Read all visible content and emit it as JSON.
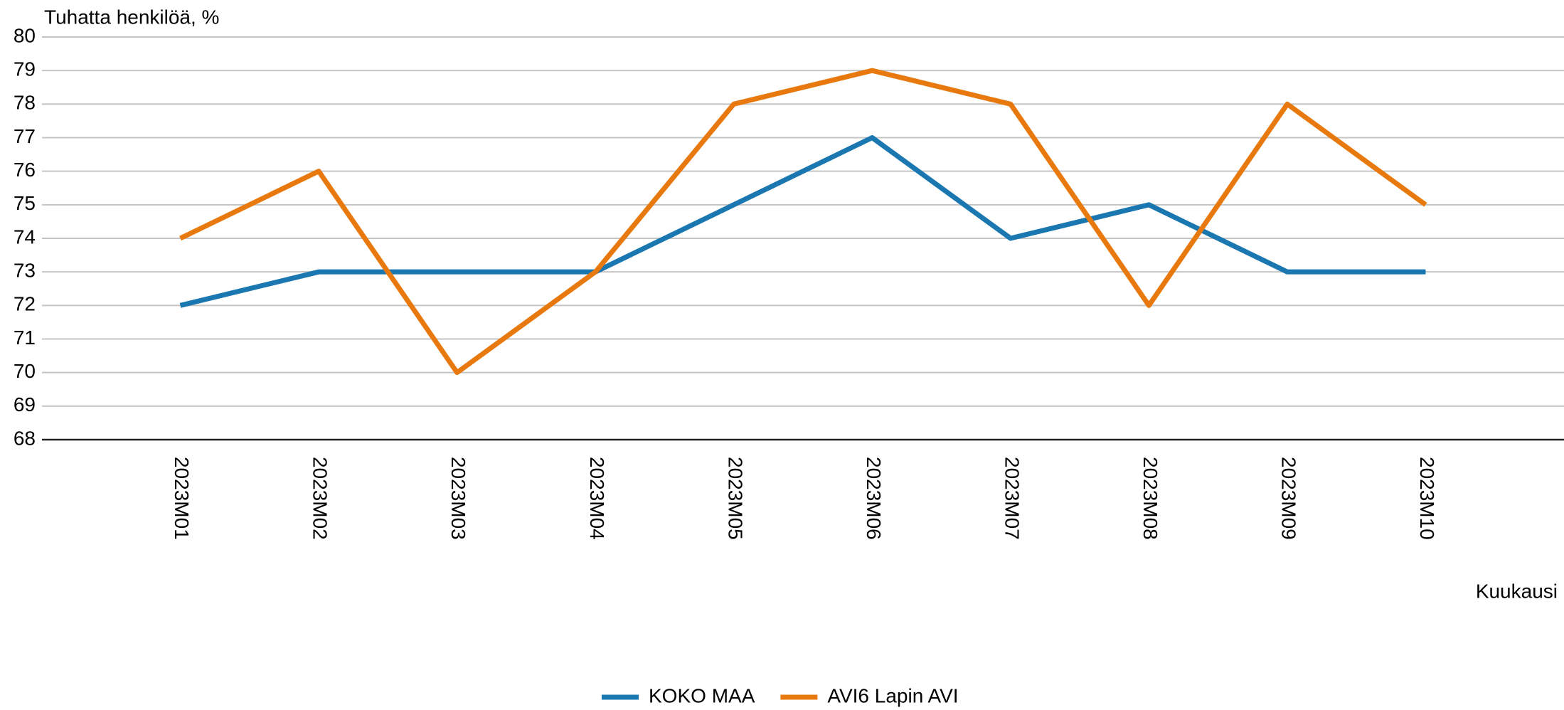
{
  "chart_data": {
    "type": "line",
    "title": "Tuhatta henkilöä, %",
    "x_label": "Kuukausi",
    "categories": [
      "2023M01",
      "2023M02",
      "2023M03",
      "2023M04",
      "2023M05",
      "2023M06",
      "2023M07",
      "2023M08",
      "2023M09",
      "2023M10"
    ],
    "series": [
      {
        "name": "KOKO MAA",
        "color": "#1a77b0",
        "values": [
          72,
          73,
          73,
          73,
          75,
          77,
          74,
          75,
          73,
          73
        ]
      },
      {
        "name": "AVI6 Lapin AVI",
        "color": "#e8790f",
        "values": [
          74,
          76,
          70,
          73,
          78,
          79,
          78,
          72,
          78,
          75
        ]
      }
    ],
    "ylim": [
      68,
      80
    ],
    "yticks": [
      68,
      69,
      70,
      71,
      72,
      73,
      74,
      75,
      76,
      77,
      78,
      79,
      80
    ],
    "grid": true,
    "legend": "bottom"
  }
}
